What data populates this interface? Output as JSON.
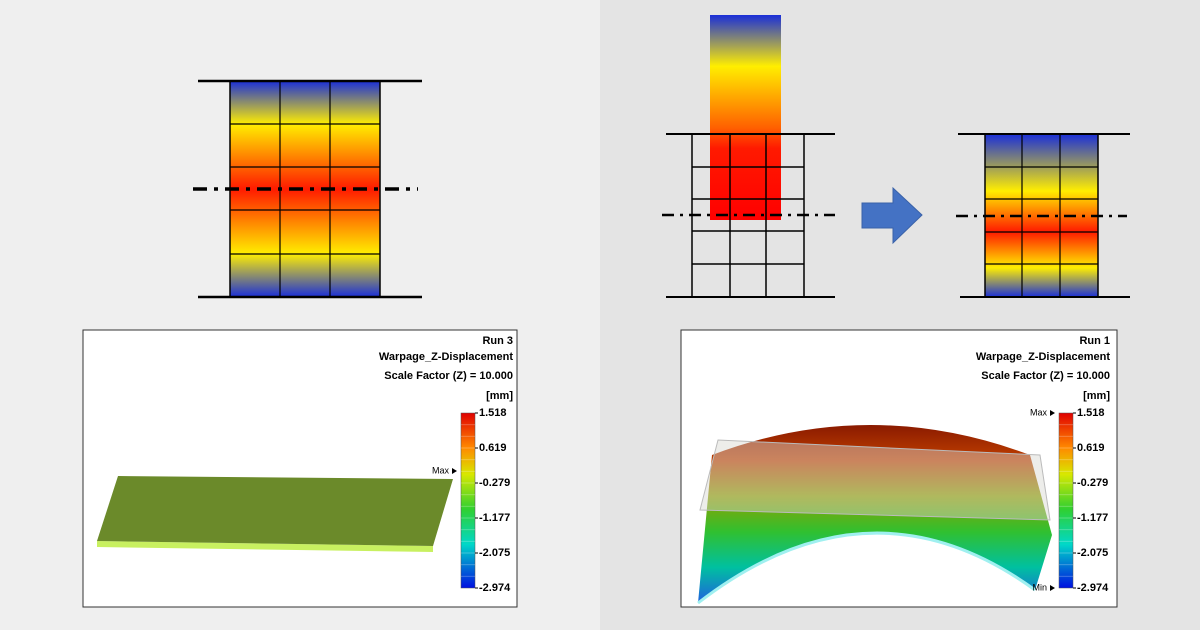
{
  "panels": [
    {
      "run": "Run 3",
      "result": "Warpage_Z-Displacement",
      "scale": "Scale Factor (Z) = 10.000",
      "unit": "[mm]",
      "legend": [
        "1.518",
        "0.619",
        "-0.279",
        "-1.177",
        "-2.075",
        "-2.974"
      ],
      "max_marker": "Max"
    },
    {
      "run": "Run 1",
      "result": "Warpage_Z-Displacement",
      "scale": "Scale Factor (Z) = 10.000",
      "unit": "[mm]",
      "legend": [
        "1.518",
        "0.619",
        "-0.279",
        "-1.177",
        "-2.075",
        "-2.974"
      ],
      "max_marker": "Max",
      "min_marker": "Min"
    }
  ]
}
